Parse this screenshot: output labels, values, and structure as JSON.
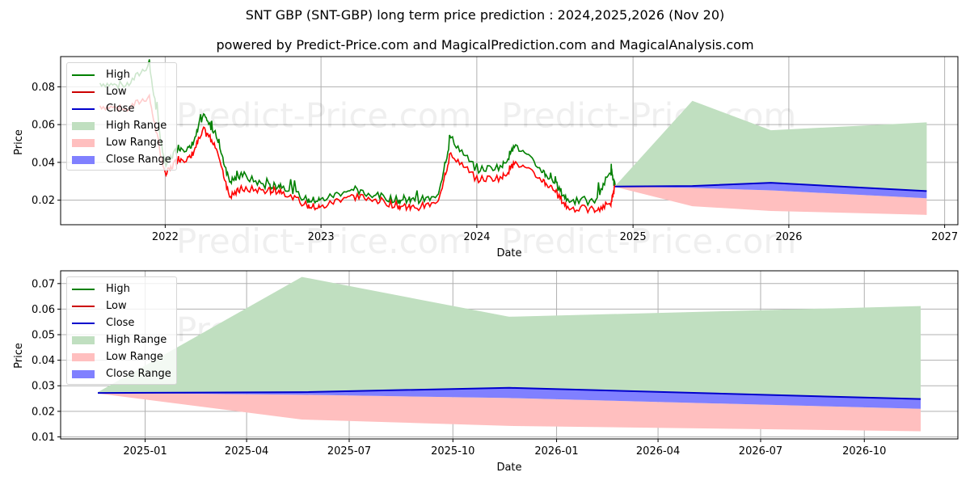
{
  "title": "SNT GBP (SNT-GBP) long term price prediction : 2024,2025,2026 (Nov 20)",
  "subtitle": "powered by Predict-Price.com and MagicalPrediction.com and MagicalAnalysis.com",
  "watermark": "Predict-Price.com",
  "colors": {
    "high": "#008000",
    "low": "#ff0000",
    "close": "#0000cc",
    "high_range": "#c0dfc0",
    "low_range": "#ffbfbf",
    "close_range": "#8080ff"
  },
  "legend": {
    "items": [
      {
        "label": "High",
        "kind": "line",
        "color": "#008000"
      },
      {
        "label": "Low",
        "kind": "line",
        "color": "#cc0000"
      },
      {
        "label": "Close",
        "kind": "line",
        "color": "#0000cc"
      },
      {
        "label": "High Range",
        "kind": "patch",
        "color": "#c0dfc0"
      },
      {
        "label": "Low Range",
        "kind": "patch",
        "color": "#ffbfbf"
      },
      {
        "label": "Close Range",
        "kind": "patch",
        "color": "#8080ff"
      }
    ]
  },
  "chart_data": [
    {
      "type": "line",
      "title": "SNT GBP (SNT-GBP) long term price prediction : 2024,2025,2026 (Nov 20)",
      "xlabel": "Date",
      "ylabel": "Price",
      "x_ticks": [
        "2022",
        "2023",
        "2024",
        "2025",
        "2026",
        "2027"
      ],
      "y_ticks": [
        "0.02",
        "0.04",
        "0.06",
        "0.08"
      ],
      "ylim": [
        0.007,
        0.096
      ],
      "xlim": [
        "2021-05",
        "2027-02"
      ],
      "grid": true,
      "legend_position": "upper left",
      "history": {
        "x": [
          "2021-08",
          "2021-10",
          "2021-11-25",
          "2022-01",
          "2022-02",
          "2022-03",
          "2022-04",
          "2022-05",
          "2022-06",
          "2022-07",
          "2022-09",
          "2022-10",
          "2022-12",
          "2023-01",
          "2023-03",
          "2023-05",
          "2023-07",
          "2023-08",
          "2023-10",
          "2023-11",
          "2024-01",
          "2024-03",
          "2024-04",
          "2024-06",
          "2024-07",
          "2024-08",
          "2024-10",
          "2024-11-10",
          "2024-11-20"
        ],
        "high": [
          0.082,
          0.08,
          0.092,
          0.038,
          0.048,
          0.047,
          0.064,
          0.055,
          0.03,
          0.033,
          0.027,
          0.028,
          0.02,
          0.02,
          0.025,
          0.023,
          0.02,
          0.02,
          0.021,
          0.053,
          0.036,
          0.038,
          0.049,
          0.036,
          0.029,
          0.02,
          0.019,
          0.035,
          0.028
        ],
        "low": [
          0.07,
          0.068,
          0.075,
          0.033,
          0.042,
          0.042,
          0.057,
          0.049,
          0.022,
          0.026,
          0.025,
          0.025,
          0.017,
          0.016,
          0.022,
          0.021,
          0.017,
          0.016,
          0.018,
          0.045,
          0.031,
          0.032,
          0.04,
          0.031,
          0.025,
          0.016,
          0.015,
          0.018,
          0.027
        ]
      },
      "forecast": {
        "x": [
          "2024-11-20",
          "2025-05-20",
          "2025-11-20",
          "2026-11-20"
        ],
        "high_range_top": [
          0.0275,
          0.0726,
          0.057,
          0.0612
        ],
        "close": [
          0.0272,
          0.0275,
          0.0292,
          0.0248
        ],
        "close_range_bottom": [
          0.0272,
          0.0265,
          0.0252,
          0.021
        ],
        "low_range_bottom": [
          0.027,
          0.0168,
          0.0143,
          0.0122
        ]
      }
    },
    {
      "type": "line",
      "title": "",
      "xlabel": "Date",
      "ylabel": "Price",
      "x_ticks": [
        "2025-01",
        "2025-04",
        "2025-07",
        "2025-10",
        "2026-01",
        "2026-04",
        "2026-07",
        "2026-10"
      ],
      "y_ticks": [
        "0.01",
        "0.02",
        "0.03",
        "0.04",
        "0.05",
        "0.06",
        "0.07"
      ],
      "ylim": [
        0.0092,
        0.075
      ],
      "xlim": [
        "2024-10-18",
        "2026-12-23"
      ],
      "grid": true,
      "legend_position": "upper left",
      "forecast": {
        "x": [
          "2024-11-20",
          "2025-05-20",
          "2025-11-20",
          "2026-11-20"
        ],
        "high_range_top": [
          0.0275,
          0.0726,
          0.057,
          0.0612
        ],
        "close": [
          0.0272,
          0.0275,
          0.0292,
          0.0248
        ],
        "close_range_bottom": [
          0.0272,
          0.0265,
          0.0252,
          0.021
        ],
        "low_range_bottom": [
          0.027,
          0.0168,
          0.0143,
          0.0122
        ]
      }
    }
  ]
}
